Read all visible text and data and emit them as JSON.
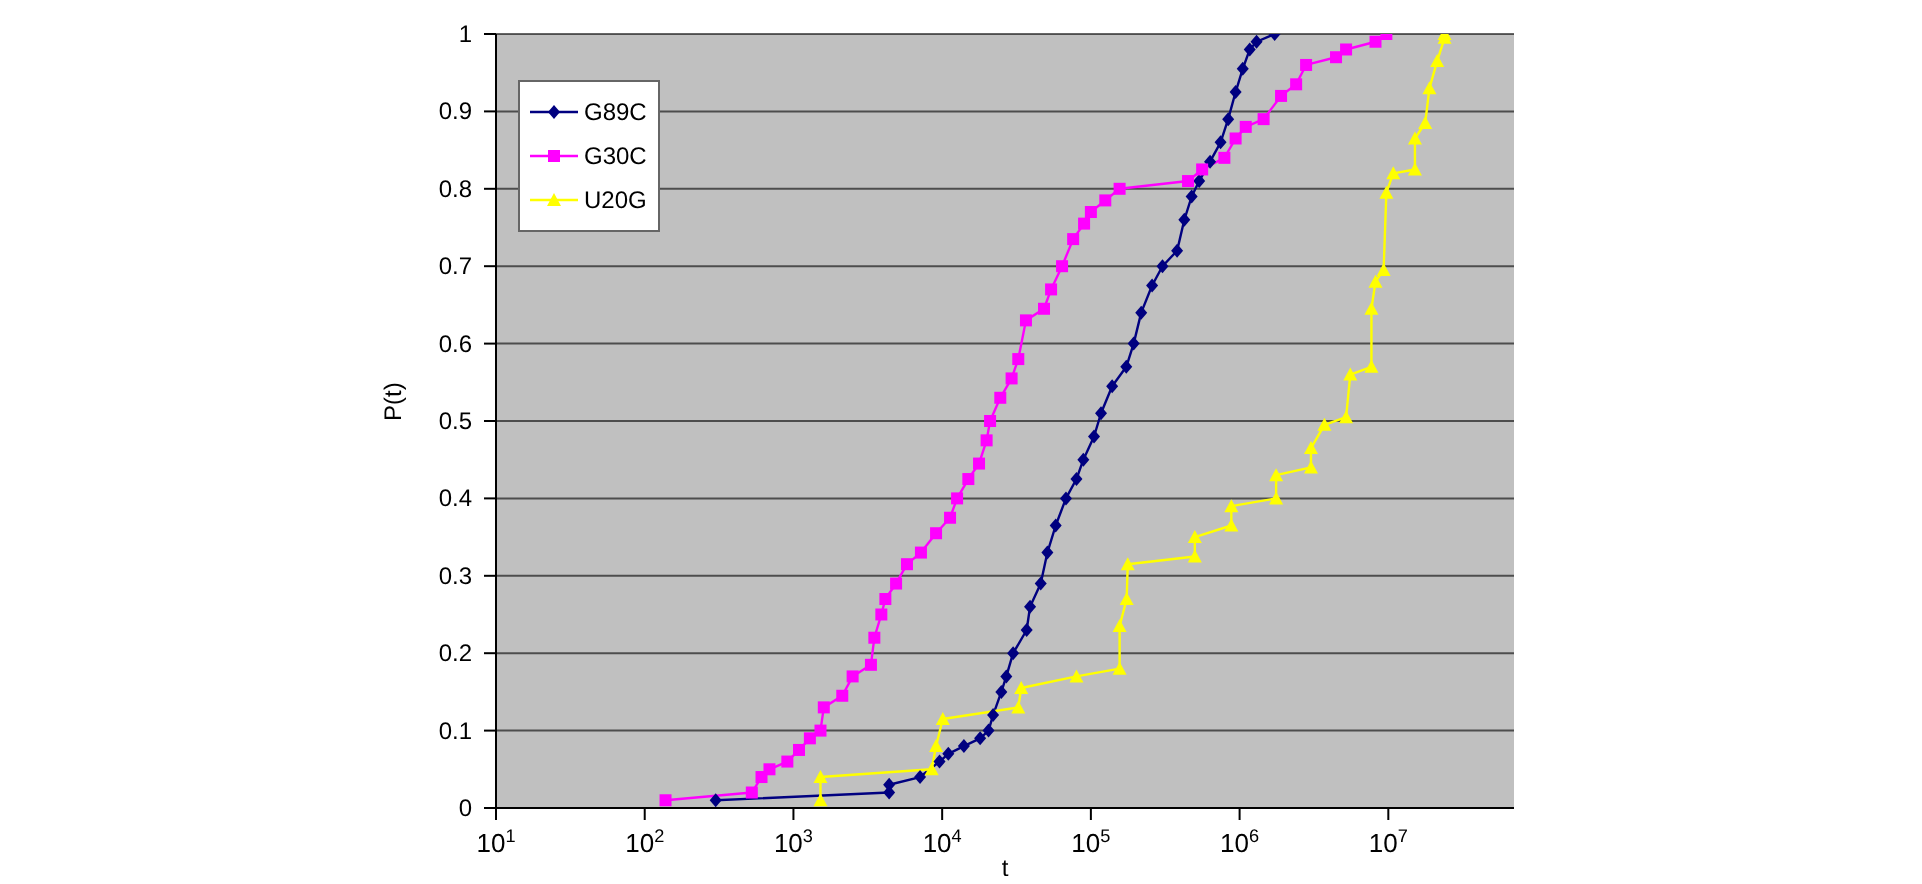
{
  "chart_data": {
    "type": "line",
    "xlabel": "t",
    "ylabel": "P(t)",
    "log": "x",
    "grid": "y",
    "legend": "top left",
    "line_style": "solid",
    "xlim": [
      10,
      70000000
    ],
    "xticks": [
      {
        "value": 10,
        "label": "10$^{1}$"
      },
      {
        "value": 100,
        "label": "10$^{2}$"
      },
      {
        "value": 1000,
        "label": "10$^{3}$"
      },
      {
        "value": 10000,
        "label": "10$^{4}$"
      },
      {
        "value": 100000,
        "label": "10$^{5}$"
      },
      {
        "value": 1000000,
        "label": "10$^{6}$"
      },
      {
        "value": 10000000,
        "label": "10$^{7}$"
      }
    ],
    "ylim": [
      0,
      1
    ],
    "yticks": [
      0,
      0.1,
      0.2,
      0.3,
      0.4,
      0.5,
      0.6,
      0.7,
      0.8,
      0.9,
      1
    ],
    "series": [
      {
        "name": "G89C",
        "color": "#000080",
        "marker": "diamond",
        "x": [
          300,
          4400,
          4400,
          7100,
          9600,
          11000,
          14000,
          18000,
          20500,
          22000,
          25000,
          27000,
          30000,
          37000,
          39000,
          46000,
          51000,
          58000,
          68000,
          80000,
          89000,
          105000,
          117000,
          139000,
          173000,
          194000,
          218000,
          258000,
          303000,
          380000,
          425000,
          476000,
          535000,
          633000,
          745000,
          838000,
          940000,
          1050000,
          1170000,
          1300000,
          1720000
        ],
        "values": [
          0.01,
          0.02,
          0.03,
          0.04,
          0.06,
          0.07,
          0.08,
          0.09,
          0.1,
          0.12,
          0.15,
          0.17,
          0.2,
          0.23,
          0.26,
          0.29,
          0.33,
          0.365,
          0.4,
          0.425,
          0.45,
          0.48,
          0.51,
          0.545,
          0.57,
          0.6,
          0.64,
          0.675,
          0.7,
          0.72,
          0.76,
          0.79,
          0.81,
          0.835,
          0.86,
          0.89,
          0.925,
          0.955,
          0.98,
          0.99,
          1
        ]
      },
      {
        "name": "G30C",
        "color": "#ff00ff",
        "marker": "square",
        "x": [
          138,
          525,
          610,
          690,
          910,
          1090,
          1290,
          1520,
          1600,
          2130,
          2500,
          3320,
          3500,
          3900,
          4150,
          4900,
          5800,
          7200,
          9100,
          11300,
          12600,
          15000,
          17700,
          19900,
          21000,
          24600,
          29300,
          32500,
          36600,
          48400,
          54000,
          64000,
          76000,
          90000,
          100000,
          125000,
          156000,
          450000,
          560000,
          790000,
          940000,
          1100000,
          1450000,
          1900000,
          2400000,
          2800000,
          4450000,
          5200000,
          8200000,
          9700000
        ],
        "values": [
          0.01,
          0.02,
          0.04,
          0.05,
          0.06,
          0.075,
          0.09,
          0.1,
          0.13,
          0.145,
          0.17,
          0.185,
          0.22,
          0.25,
          0.27,
          0.29,
          0.315,
          0.33,
          0.355,
          0.375,
          0.4,
          0.425,
          0.445,
          0.475,
          0.5,
          0.53,
          0.555,
          0.58,
          0.63,
          0.645,
          0.67,
          0.7,
          0.735,
          0.755,
          0.77,
          0.785,
          0.8,
          0.81,
          0.825,
          0.84,
          0.865,
          0.88,
          0.89,
          0.92,
          0.935,
          0.96,
          0.97,
          0.98,
          0.99,
          1
        ]
      },
      {
        "name": "U20G",
        "color": "#ffff00",
        "marker": "triangle",
        "x": [
          1520,
          1520,
          8500,
          9100,
          10100,
          32500,
          34000,
          80000,
          156000,
          156000,
          174000,
          177000,
          500000,
          500000,
          880000,
          880000,
          1760000,
          1760000,
          3020000,
          3020000,
          3720000,
          5200000,
          5550000,
          7700000,
          7700000,
          8200000,
          9300000,
          9700000,
          10800000,
          15100000,
          15100000,
          17700000,
          18900000,
          21300000,
          23900000,
          23900000
        ],
        "values": [
          0.01,
          0.04,
          0.05,
          0.08,
          0.115,
          0.13,
          0.155,
          0.17,
          0.18,
          0.235,
          0.27,
          0.315,
          0.325,
          0.35,
          0.365,
          0.39,
          0.4,
          0.43,
          0.44,
          0.465,
          0.495,
          0.505,
          0.56,
          0.57,
          0.645,
          0.68,
          0.695,
          0.795,
          0.82,
          0.825,
          0.865,
          0.885,
          0.93,
          0.965,
          0.995,
          1
        ]
      }
    ]
  }
}
